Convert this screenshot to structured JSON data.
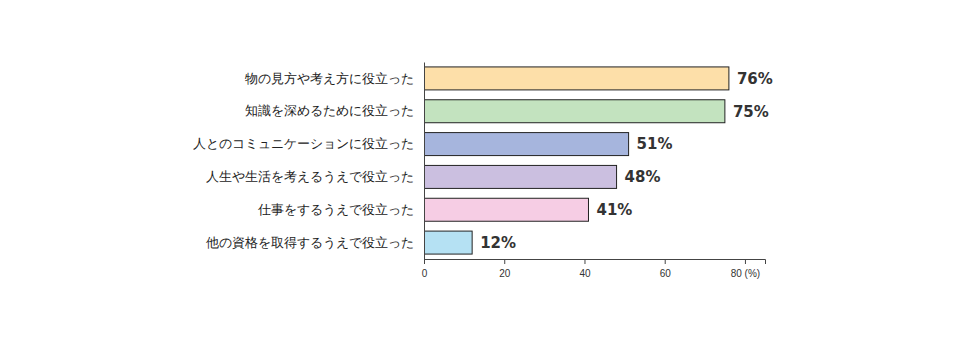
{
  "chart_data": {
    "type": "bar",
    "orientation": "horizontal",
    "categories": [
      "物の見方や考え方に役立った",
      "知識を深めるために役立った",
      "人とのコミュニケーションに役立った",
      "人生や生活を考えるうえで役立った",
      "仕事をするうえで役立った",
      "他の資格を取得するうえで役立った"
    ],
    "values": [
      76,
      75,
      51,
      48,
      41,
      12
    ],
    "value_labels": [
      "76%",
      "75%",
      "51%",
      "48%",
      "41%",
      "12%"
    ],
    "colors": [
      "#fddfa9",
      "#c3e3bf",
      "#a6b5dd",
      "#cbbfe0",
      "#f6cde4",
      "#b5e1f3"
    ],
    "xlim": [
      0,
      85
    ],
    "xticks": [
      0,
      20,
      40,
      60,
      {
        "value": 80,
        "label": "80 (%)"
      }
    ],
    "data_labels": true,
    "grid": false
  }
}
